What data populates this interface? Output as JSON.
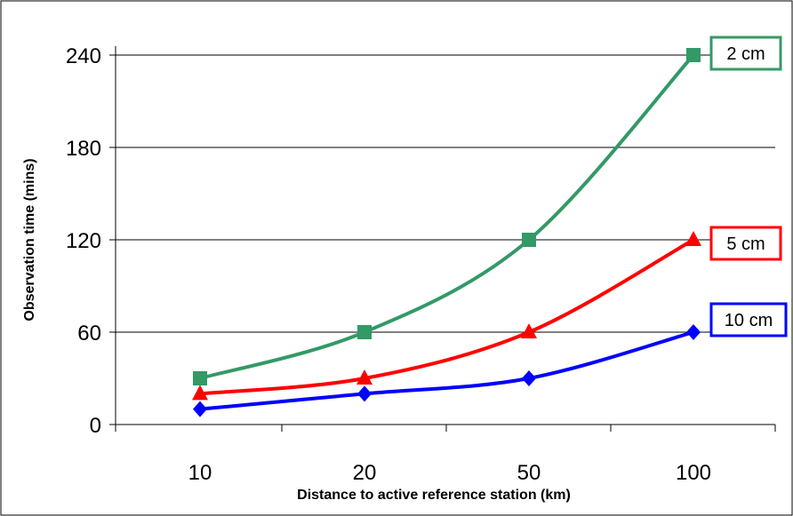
{
  "chart_data": {
    "type": "line",
    "categories": [
      "10",
      "20",
      "50",
      "100"
    ],
    "xlabel": "Distance to active reference station (km)",
    "ylabel": "Observation time (mins)",
    "ylim": [
      0,
      240
    ],
    "yticks": [
      "0",
      "60",
      "120",
      "180",
      "240"
    ],
    "grid": "horizontal",
    "legend_placement": "series labels at right end of lines",
    "series": [
      {
        "name": "2 cm",
        "values": [
          30,
          60,
          120,
          240
        ],
        "color": "#339966",
        "marker": "square"
      },
      {
        "name": "5 cm",
        "values": [
          20,
          30,
          60,
          120
        ],
        "color": "#ff0000",
        "marker": "triangle"
      },
      {
        "name": "10 cm",
        "values": [
          10,
          20,
          30,
          60
        ],
        "color": "#0000ff",
        "marker": "diamond"
      }
    ]
  }
}
